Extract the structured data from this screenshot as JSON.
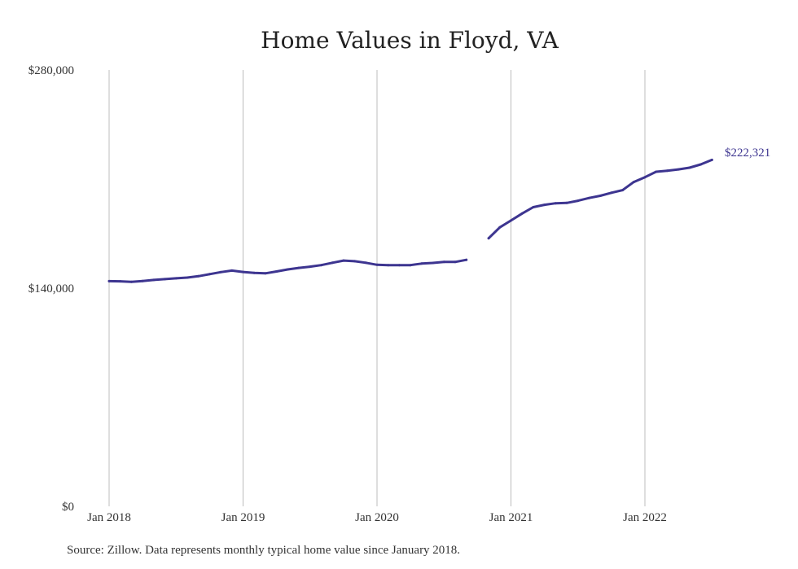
{
  "chart_data": {
    "type": "line",
    "title": "Home Values in Floyd, VA",
    "xlabel": "",
    "ylabel": "",
    "ylim": [
      0,
      280000
    ],
    "y_ticks": [
      "$0",
      "$140,000",
      "$280,000"
    ],
    "x_ticks": [
      "Jan 2018",
      "Jan 2019",
      "Jan 2020",
      "Jan 2021",
      "Jan 2022"
    ],
    "grid": "vertical",
    "line_color": "#3d3590",
    "end_label": "$222,321",
    "series": [
      {
        "segments": [
          {
            "x": [
              "2018-01",
              "2018-02",
              "2018-03",
              "2018-04",
              "2018-05",
              "2018-06",
              "2018-07",
              "2018-08",
              "2018-09",
              "2018-10",
              "2018-11",
              "2018-12",
              "2019-01",
              "2019-02",
              "2019-03",
              "2019-04",
              "2019-05",
              "2019-06",
              "2019-07",
              "2019-08",
              "2019-09",
              "2019-10",
              "2019-11",
              "2019-12",
              "2020-01",
              "2020-02",
              "2020-03",
              "2020-04",
              "2020-05",
              "2020-06",
              "2020-07",
              "2020-08",
              "2020-09"
            ],
            "y": [
              144500,
              144400,
              144000,
              144600,
              145300,
              145800,
              146300,
              146800,
              147700,
              149000,
              150300,
              151300,
              150400,
              149800,
              149500,
              150700,
              152000,
              153000,
              153800,
              154800,
              156300,
              157700,
              157300,
              156300,
              155000,
              154800,
              154800,
              154800,
              155800,
              156200,
              156800,
              156800,
              158200
            ]
          },
          {
            "x": [
              "2020-11",
              "2020-12",
              "2021-01",
              "2021-02",
              "2021-03",
              "2021-04",
              "2021-05",
              "2021-06",
              "2021-07",
              "2021-08",
              "2021-09",
              "2021-10",
              "2021-11",
              "2021-12",
              "2022-01",
              "2022-02",
              "2022-03",
              "2022-04",
              "2022-05",
              "2022-06",
              "2022-07"
            ],
            "y": [
              172000,
              179000,
              183400,
              187900,
              192000,
              193500,
              194500,
              194700,
              196100,
              197900,
              199300,
              201200,
              202900,
              208100,
              211200,
              214700,
              215400,
              216200,
              217300,
              219400,
              222321
            ]
          }
        ]
      }
    ]
  },
  "source_text": "Source: Zillow. Data represents monthly typical home value since January 2018."
}
